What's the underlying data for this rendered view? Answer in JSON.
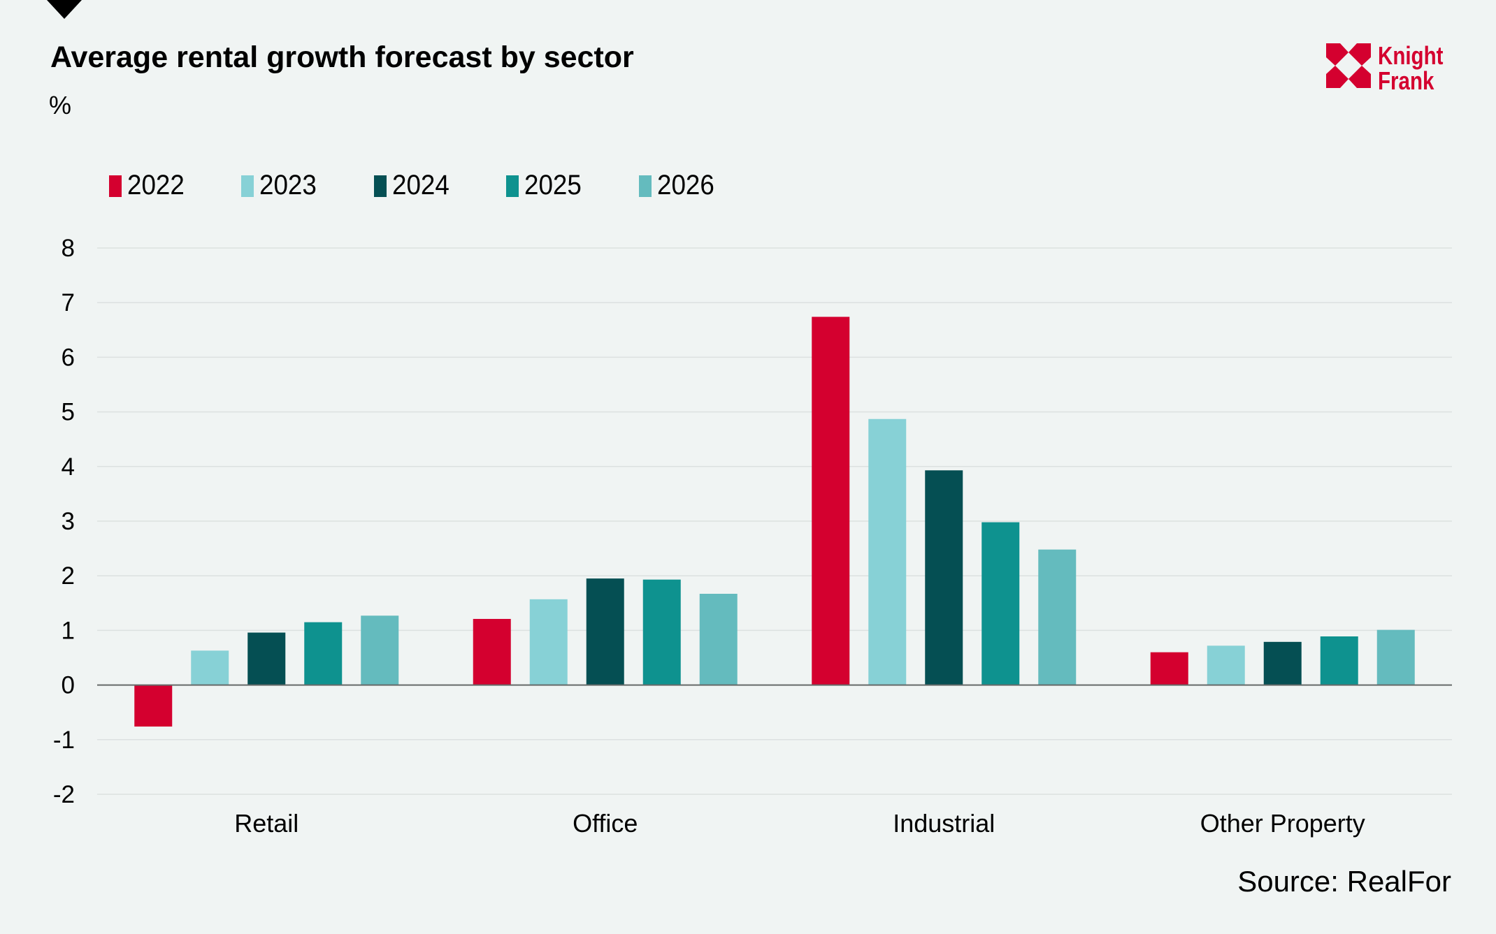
{
  "header": {
    "title": "Average rental growth forecast by sector",
    "unit": "%"
  },
  "logo": {
    "line1": "Knight",
    "line2": "Frank",
    "color": "#D4002F"
  },
  "legend": [
    {
      "label": "2022",
      "color": "#D4002F"
    },
    {
      "label": "2023",
      "color": "#87D1D6"
    },
    {
      "label": "2024",
      "color": "#054F53"
    },
    {
      "label": "2025",
      "color": "#0E928F"
    },
    {
      "label": "2026",
      "color": "#64BBBE"
    }
  ],
  "footer": {
    "source": "Source: RealFor"
  },
  "chart_data": {
    "type": "bar",
    "title": "Average rental growth forecast by sector",
    "xlabel": "",
    "ylabel": "%",
    "ylim": [
      -2,
      8
    ],
    "yticks": [
      8,
      7,
      6,
      5,
      4,
      3,
      2,
      1,
      0,
      -1,
      -2
    ],
    "grid": true,
    "legend_position": "top-left",
    "categories": [
      "Retail",
      "Office",
      "Industrial",
      "Other Property"
    ],
    "series": [
      {
        "name": "2022",
        "color": "#D4002F",
        "values": [
          -0.76,
          1.21,
          6.74,
          0.6
        ]
      },
      {
        "name": "2023",
        "color": "#87D1D6",
        "values": [
          0.63,
          1.57,
          4.87,
          0.72
        ]
      },
      {
        "name": "2024",
        "color": "#054F53",
        "values": [
          0.96,
          1.95,
          3.93,
          0.79
        ]
      },
      {
        "name": "2025",
        "color": "#0E928F",
        "values": [
          1.15,
          1.93,
          2.98,
          0.89
        ]
      },
      {
        "name": "2026",
        "color": "#64BBBE",
        "values": [
          1.27,
          1.67,
          2.48,
          1.01
        ]
      }
    ],
    "source": "Source: RealFor"
  }
}
